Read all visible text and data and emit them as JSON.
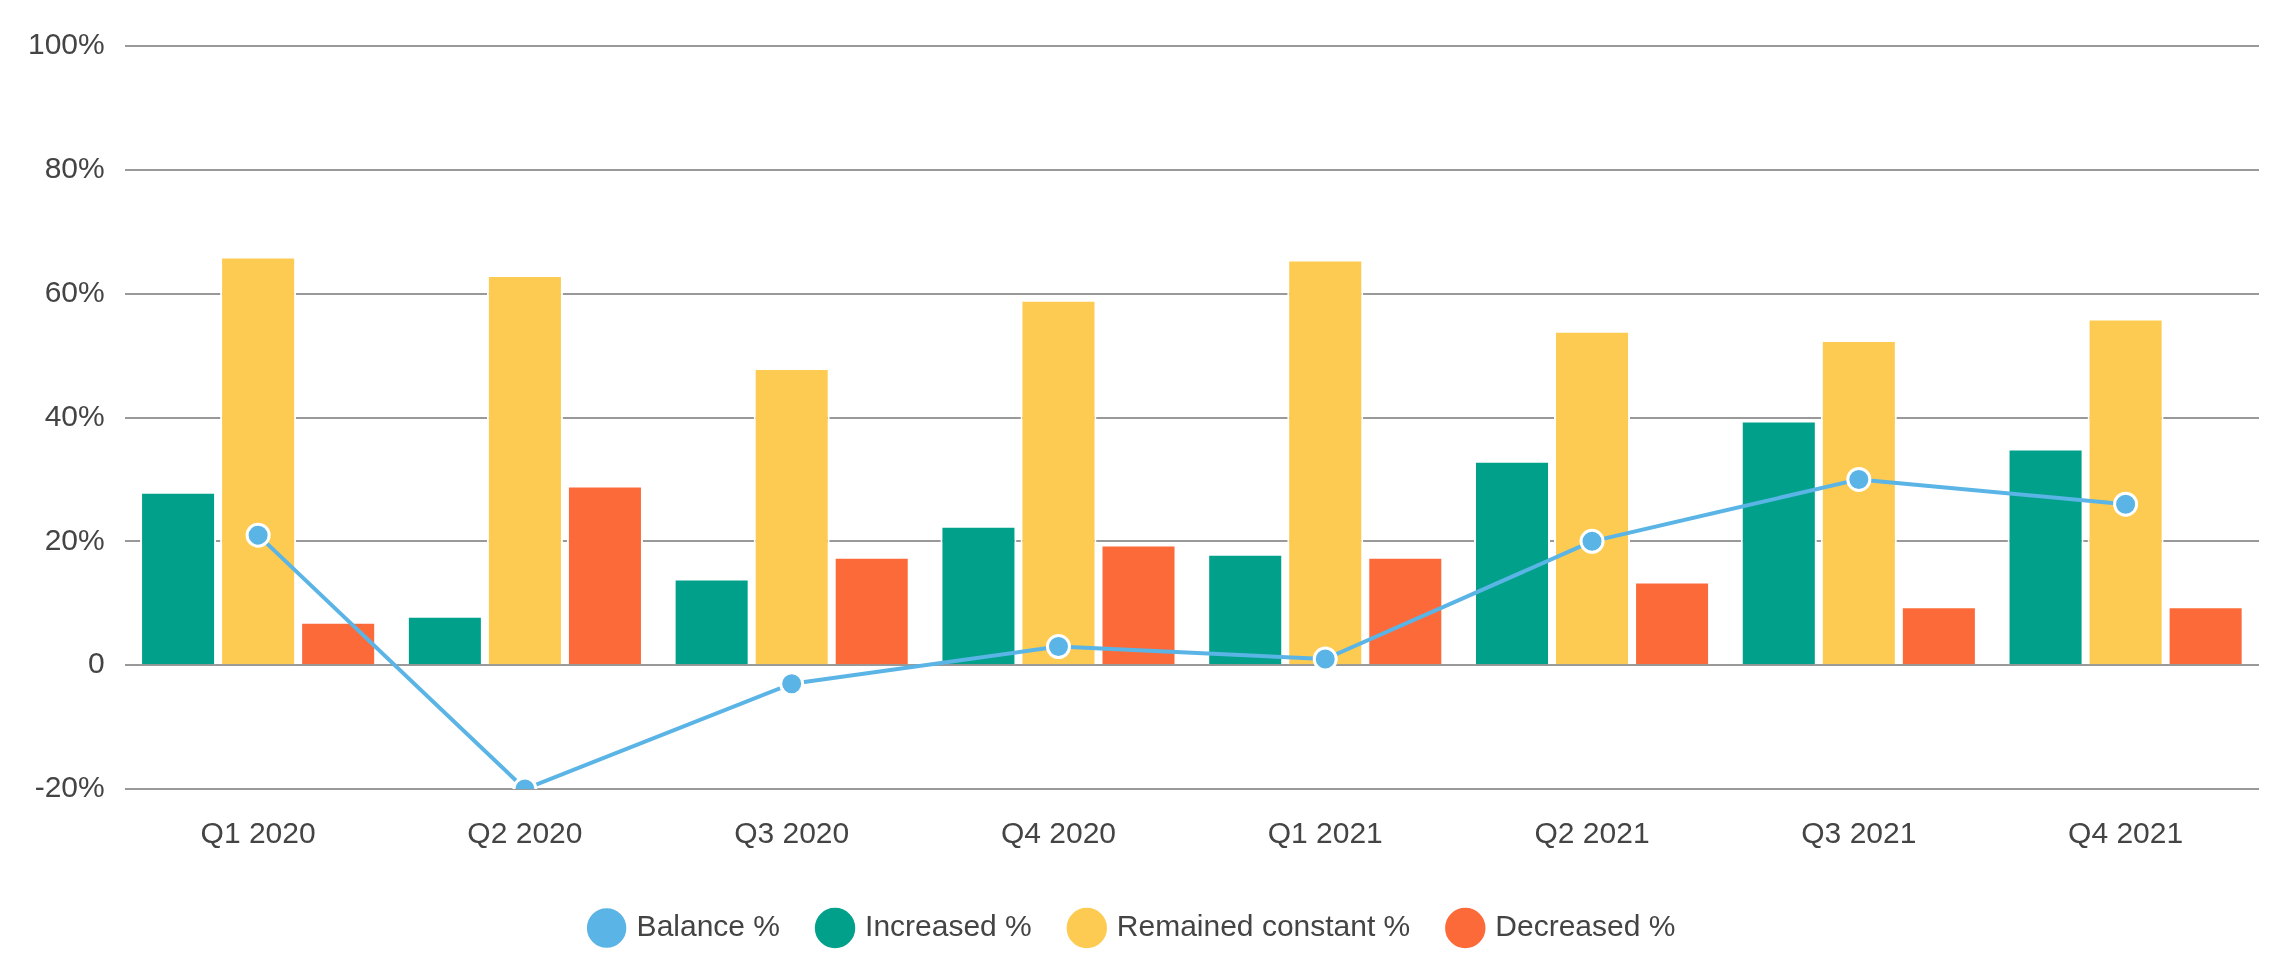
{
  "chart_data": {
    "type": "bar",
    "categories": [
      "Q1 2020",
      "Q2 2020",
      "Q3 2020",
      "Q4 2020",
      "Q1 2021",
      "Q2 2021",
      "Q3 2021",
      "Q4 2021"
    ],
    "series": [
      {
        "name": "Increased %",
        "color": "#00a08a",
        "values": [
          28,
          8,
          14,
          22.5,
          18,
          33,
          39.5,
          35
        ]
      },
      {
        "name": "Remained constant %",
        "color": "#fecb52",
        "values": [
          66,
          63,
          48,
          59,
          65.5,
          54,
          52.5,
          56
        ]
      },
      {
        "name": "Decreased %",
        "color": "#fd6a3a",
        "values": [
          7,
          29,
          17.5,
          19.5,
          17.5,
          13.5,
          9.5,
          9.5
        ]
      },
      {
        "name": "Balance %",
        "color": "#5ab4e5",
        "type": "line",
        "values": [
          21,
          -20,
          -3,
          3,
          1,
          20,
          30,
          26
        ]
      }
    ],
    "ylim": [
      -20,
      100
    ],
    "yticks": [
      {
        "value": -20,
        "label": "-20%"
      },
      0,
      {
        "value": 20,
        "label": "20%"
      },
      {
        "value": 40,
        "label": "40%"
      },
      {
        "value": 60,
        "label": "60%"
      },
      {
        "value": 80,
        "label": "80%"
      },
      {
        "value": 100,
        "label": "100%"
      }
    ],
    "grid": "y",
    "legend": "bottom",
    "marker": "circle"
  }
}
